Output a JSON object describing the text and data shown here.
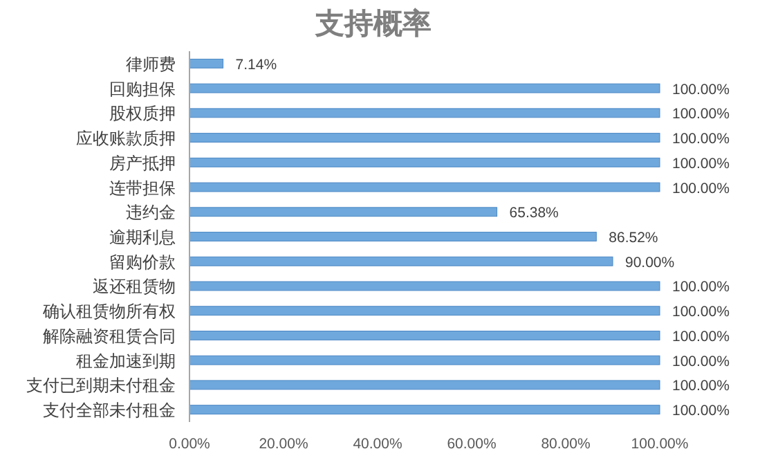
{
  "chart_data": {
    "type": "bar",
    "orientation": "horizontal",
    "title": "支持概率",
    "categories": [
      "律师费",
      "回购担保",
      "股权质押",
      "应收账款质押",
      "房产抵押",
      "连带担保",
      "违约金",
      "逾期利息",
      "留购价款",
      "返还租赁物",
      "确认租赁物所有权",
      "解除融资租赁合同",
      "租金加速到期",
      "支付已到期未付租金",
      "支付全部未付租金"
    ],
    "values": [
      7.14,
      100,
      100,
      100,
      100,
      100,
      65.38,
      86.52,
      90,
      100,
      100,
      100,
      100,
      100,
      100
    ],
    "value_labels": [
      "7.14%",
      "100.00%",
      "100.00%",
      "100.00%",
      "100.00%",
      "100.00%",
      "65.38%",
      "86.52%",
      "90.00%",
      "100.00%",
      "100.00%",
      "100.00%",
      "100.00%",
      "100.00%",
      "100.00%"
    ],
    "color": "#6fa8dc",
    "xlim": [
      0,
      100
    ],
    "xticks": [
      {
        "value": 0,
        "label": "0.00%"
      },
      {
        "value": 20,
        "label": "20.00%"
      },
      {
        "value": 40,
        "label": "40.00%"
      },
      {
        "value": 60,
        "label": "60.00%"
      },
      {
        "value": 80,
        "label": "80.00%"
      },
      {
        "value": 100,
        "label": "100.00%"
      }
    ],
    "grid": false
  }
}
